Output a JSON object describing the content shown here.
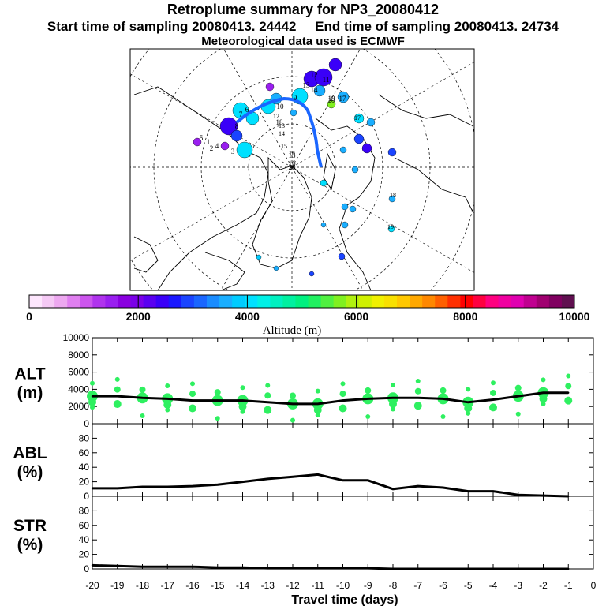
{
  "header": {
    "title": "Retroplume summary for NP3_20080412",
    "start_label": "Start time of sampling 20080413. 24442",
    "end_label": "End time of sampling 20080413. 24734",
    "met_label": "Meteorological data used is ECMWF"
  },
  "colorbar": {
    "title": "Altitude (m)",
    "ticks": [
      "0",
      "2000",
      "4000",
      "6000",
      "8000",
      "10000"
    ],
    "colors": [
      "#fde6fd",
      "#f5c9f5",
      "#eda8f0",
      "#e07ff0",
      "#cc55ee",
      "#b033ee",
      "#9a1ff0",
      "#8a00e0",
      "#7a00e8",
      "#5a00f0",
      "#3a00f8",
      "#1a18ff",
      "#1a44ff",
      "#1a66ff",
      "#1a8cff",
      "#1aaeff",
      "#00ccff",
      "#00e0ff",
      "#00f0e6",
      "#00f0c0",
      "#00f0a0",
      "#00f080",
      "#20f060",
      "#50f040",
      "#80f020",
      "#b0f010",
      "#d0f000",
      "#f0f000",
      "#f8e000",
      "#ffc800",
      "#ffa800",
      "#ff8800",
      "#ff6000",
      "#ff3000",
      "#ff0000",
      "#ff0040",
      "#ff0080",
      "#f000a0",
      "#e000b0",
      "#c00090",
      "#a00070",
      "#800060",
      "#601050"
    ]
  },
  "map": {
    "trajectory_labels": [
      "1",
      "2",
      "3",
      "4",
      "5",
      "6",
      "7",
      "8",
      "9",
      "10",
      "11",
      "12",
      "13",
      "14",
      "15",
      "16",
      "17",
      "18",
      "19",
      "20"
    ],
    "cluster_labels": [
      "12",
      "13",
      "14",
      "15",
      "16",
      "17",
      "18",
      "19",
      "20"
    ]
  },
  "chart_data": [
    {
      "type": "line",
      "panel": "ALT",
      "ylabel_top": "ALT",
      "ylabel_bottom": "(m)",
      "ylim": [
        0,
        10000
      ],
      "yticks": [
        "0",
        "2000",
        "4000",
        "6000",
        "8000",
        "10000"
      ],
      "x": [
        -20,
        -19,
        -18,
        -17,
        -16,
        -15,
        -14,
        -13,
        -12,
        -11,
        -10,
        -9,
        -8,
        -7,
        -6,
        -5,
        -4,
        -3,
        -2,
        -1
      ],
      "values": [
        3200,
        3200,
        3000,
        2900,
        2700,
        2700,
        2700,
        2500,
        2300,
        2300,
        2700,
        2900,
        3000,
        3000,
        2900,
        2500,
        2800,
        3200,
        3600,
        3600
      ],
      "cluster_color": "#2ef060"
    },
    {
      "type": "line",
      "panel": "ABL",
      "ylabel_top": "ABL",
      "ylabel_bottom": "(%)",
      "ylim": [
        0,
        100
      ],
      "yticks": [
        "0",
        "20",
        "40",
        "60",
        "80"
      ],
      "x": [
        -20,
        -19,
        -18,
        -17,
        -16,
        -15,
        -14,
        -13,
        -12,
        -11,
        -10,
        -9,
        -8,
        -7,
        -6,
        -5,
        -4,
        -3,
        -2,
        -1
      ],
      "values": [
        11,
        11,
        13,
        13,
        14,
        16,
        20,
        24,
        27,
        30,
        22,
        22,
        10,
        14,
        12,
        7,
        7,
        2,
        1,
        0
      ]
    },
    {
      "type": "line",
      "panel": "STR",
      "ylabel_top": "STR",
      "ylabel_bottom": "(%)",
      "ylim": [
        0,
        100
      ],
      "yticks": [
        "0",
        "20",
        "40",
        "60",
        "80"
      ],
      "x": [
        -20,
        -19,
        -18,
        -17,
        -16,
        -15,
        -14,
        -13,
        -12,
        -11,
        -10,
        -9,
        -8,
        -7,
        -6,
        -5,
        -4,
        -3,
        -2,
        -1
      ],
      "values": [
        5,
        4,
        3,
        3,
        3,
        2,
        2,
        1,
        1,
        1,
        1,
        1,
        0,
        0,
        0,
        0,
        0,
        0,
        0,
        0
      ]
    }
  ],
  "x_axis": {
    "label": "Travel time (days)",
    "ticks": [
      "-20",
      "-19",
      "-18",
      "-17",
      "-16",
      "-15",
      "-14",
      "-13",
      "-12",
      "-11",
      "-10",
      "-9",
      "-8",
      "-7",
      "-6",
      "-5",
      "-4",
      "-3",
      "-2",
      "-1",
      "0"
    ]
  }
}
